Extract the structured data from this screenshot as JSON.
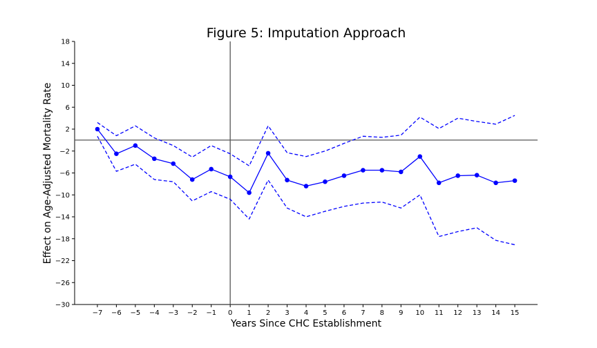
{
  "chart_data": {
    "type": "line",
    "title": "Figure 5: Imputation Approach",
    "xlabel": "Years Since CHC Establishment",
    "ylabel": "Effect on Age-Adjusted Mortality Rate",
    "x": [
      -7,
      -6,
      -5,
      -4,
      -3,
      -2,
      -1,
      0,
      1,
      2,
      3,
      4,
      5,
      6,
      7,
      8,
      9,
      10,
      11,
      12,
      13,
      14,
      15
    ],
    "xticks": [
      "−7",
      "−6",
      "−5",
      "−4",
      "−3",
      "−2",
      "−1",
      "0",
      "1",
      "2",
      "3",
      "4",
      "5",
      "6",
      "7",
      "8",
      "9",
      "10",
      "11",
      "12",
      "13",
      "14",
      "15"
    ],
    "yticks": [
      "18",
      "14",
      "10",
      "6",
      "2",
      "−2",
      "−6",
      "−10",
      "−14",
      "−18",
      "−22",
      "−26",
      "−30"
    ],
    "ytick_values": [
      18,
      14,
      10,
      6,
      2,
      -2,
      -6,
      -10,
      -14,
      -18,
      -22,
      -26,
      -30
    ],
    "xlim": [
      -8.2,
      16.2
    ],
    "ylim": [
      -30,
      18
    ],
    "series": [
      {
        "role": "estimate",
        "color": "#0000ff",
        "style": "solid",
        "markers": true,
        "values": [
          2.0,
          -2.5,
          -1.0,
          -3.4,
          -4.3,
          -7.2,
          -5.3,
          -6.7,
          -9.6,
          -2.4,
          -7.3,
          -8.4,
          -7.6,
          -6.5,
          -5.5,
          -5.5,
          -5.8,
          -3.0,
          -7.8,
          -6.5,
          -6.4,
          -7.8,
          -7.4
        ]
      },
      {
        "role": "upper-ci",
        "color": "#0000ff",
        "style": "dashed",
        "markers": false,
        "values": [
          3.2,
          0.8,
          2.6,
          0.4,
          -1.0,
          -3.1,
          -1.0,
          -2.5,
          -4.7,
          2.6,
          -2.3,
          -3.0,
          -2.0,
          -0.6,
          0.7,
          0.5,
          0.9,
          4.2,
          2.1,
          4.0,
          3.4,
          2.9,
          4.5
        ]
      },
      {
        "role": "lower-ci",
        "color": "#0000ff",
        "style": "dashed",
        "markers": false,
        "values": [
          0.7,
          -5.7,
          -4.4,
          -7.2,
          -7.6,
          -11.1,
          -9.4,
          -10.8,
          -14.4,
          -7.3,
          -12.4,
          -14.0,
          -13.0,
          -12.1,
          -11.5,
          -11.3,
          -12.4,
          -10.0,
          -17.6,
          -16.7,
          -16.0,
          -18.3,
          -19.1
        ]
      }
    ],
    "reference_lines": [
      {
        "orientation": "horizontal",
        "value": 0,
        "color": "#555555"
      },
      {
        "orientation": "vertical",
        "value": 0,
        "color": "#555555"
      }
    ],
    "grid": false,
    "legend": false
  }
}
